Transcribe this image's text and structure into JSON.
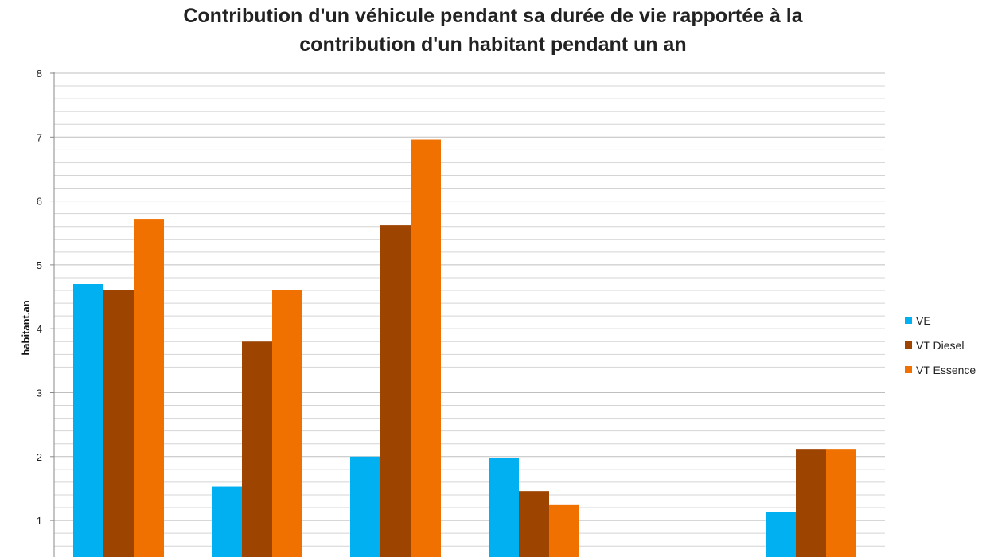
{
  "chart_data": {
    "type": "bar",
    "title_lines": [
      "Contribution d'un véhicule pendant sa durée de vie rapportée à la",
      "contribution d'un habitant pendant un an"
    ],
    "xlabel": "",
    "ylabel": "habitant.an",
    "ylim": [
      0,
      8
    ],
    "yticks": [
      1,
      2,
      3,
      4,
      5,
      6,
      7,
      8
    ],
    "minor_gridlines_per_unit": 5,
    "grid": true,
    "legend_position": "right",
    "categories": [
      "",
      "",
      "",
      "",
      "",
      ""
    ],
    "series": [
      {
        "name": "VE",
        "color": "#00b0f0",
        "values": [
          4.7,
          1.53,
          2.0,
          1.98,
          null,
          1.13
        ]
      },
      {
        "name": "VT Diesel",
        "color": "#9c4400",
        "values": [
          4.61,
          3.8,
          5.62,
          1.46,
          null,
          2.12
        ]
      },
      {
        "name": "VT Essence",
        "color": "#f07000",
        "values": [
          5.72,
          4.61,
          6.96,
          1.24,
          null,
          2.12
        ]
      }
    ]
  }
}
